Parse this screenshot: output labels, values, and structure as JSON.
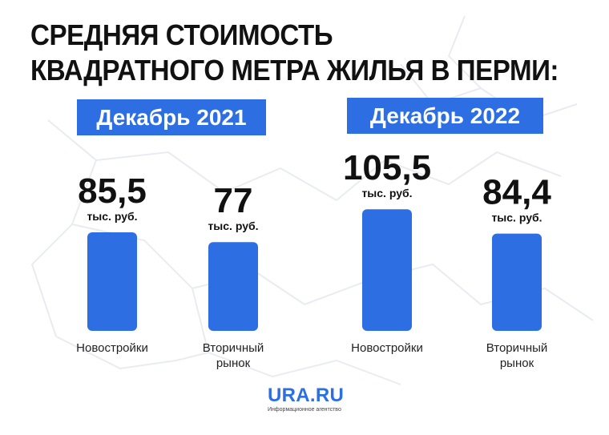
{
  "title": {
    "line1": "СРЕДНЯЯ СТОИМОСТЬ",
    "line2": "КВАДРАТНОГО МЕТРА ЖИЛЬЯ В ПЕРМИ:"
  },
  "colors": {
    "accent": "#2d6fe3",
    "text": "#111111",
    "map_lines": "#e8ecf2"
  },
  "logo": {
    "name": "URA.RU",
    "tagline": "Информационное агентство"
  },
  "chart_data": [
    {
      "type": "bar",
      "title": "Декабрь 2021",
      "categories": [
        "Новостройки",
        "Вторичный рынок"
      ],
      "category_lines": [
        [
          "Новостройки"
        ],
        [
          "Вторичный",
          "рынок"
        ]
      ],
      "values": [
        85.5,
        77
      ],
      "value_labels": [
        "85,5",
        "77"
      ],
      "unit": "тыс. руб."
    },
    {
      "type": "bar",
      "title": "Декабрь 2022",
      "categories": [
        "Новостройки",
        "Вторичный рынок"
      ],
      "category_lines": [
        [
          "Новостройки"
        ],
        [
          "Вторичный",
          "рынок"
        ]
      ],
      "values": [
        105.5,
        84.4
      ],
      "value_labels": [
        "105,5",
        "84,4"
      ],
      "unit": "тыс. руб."
    }
  ]
}
